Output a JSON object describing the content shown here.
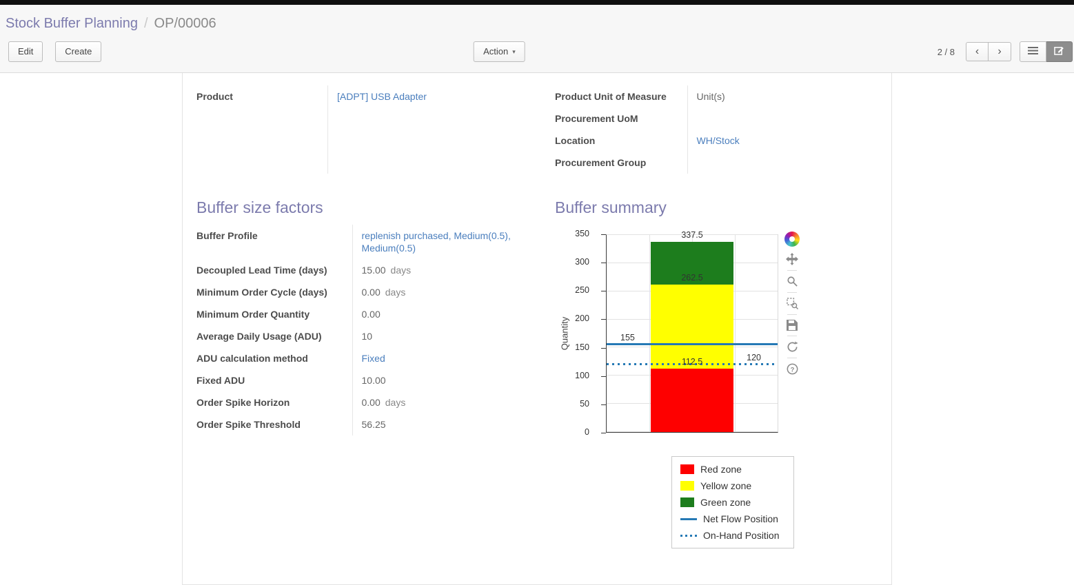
{
  "colors": {
    "accent": "#7c7bad",
    "link": "#4a7ebd",
    "red_zone": "#fe0000",
    "yellow_zone": "#ffff00",
    "green_zone": "#1d7d1d",
    "flow_blue": "#2579b5"
  },
  "breadcrumb": {
    "parent": "Stock Buffer Planning",
    "separator": "/",
    "current": "OP/00006"
  },
  "control_panel": {
    "edit_label": "Edit",
    "create_label": "Create",
    "action_label": "Action",
    "pager_value": "2 / 8",
    "pager_prev": "‹",
    "pager_next": "›"
  },
  "form": {
    "left_fields": [
      {
        "label": "Product",
        "value": "[ADPT] USB Adapter"
      }
    ],
    "right_fields": [
      {
        "label": "Product Unit of Measure",
        "value": "Unit(s)"
      },
      {
        "label": "Procurement UoM",
        "value": ""
      },
      {
        "label": "Location",
        "value": "WH/Stock"
      },
      {
        "label": "Procurement Group",
        "value": ""
      }
    ]
  },
  "buffer_factors": {
    "title": "Buffer size factors",
    "fields": [
      {
        "label": "Buffer Profile",
        "value": "replenish purchased, Medium(0.5), Medium(0.5)",
        "suffix": ""
      },
      {
        "label": "Decoupled Lead Time (days)",
        "value": "15.00",
        "suffix": "days"
      },
      {
        "label": "Minimum Order Cycle (days)",
        "value": "0.00",
        "suffix": "days"
      },
      {
        "label": "Minimum Order Quantity",
        "value": "0.00",
        "suffix": ""
      },
      {
        "label": "Average Daily Usage (ADU)",
        "value": "10",
        "suffix": ""
      },
      {
        "label": "ADU calculation method",
        "value": "Fixed",
        "suffix": ""
      },
      {
        "label": "Fixed ADU",
        "value": "10.00",
        "suffix": ""
      },
      {
        "label": "Order Spike Horizon",
        "value": "0.00",
        "suffix": "days"
      },
      {
        "label": "Order Spike Threshold",
        "value": "56.25",
        "suffix": ""
      }
    ]
  },
  "buffer_summary": {
    "title": "Buffer summary",
    "chart_data": {
      "type": "bar",
      "title": "",
      "xlabel": "",
      "ylabel": "Quantity",
      "ylim": [
        0,
        350
      ],
      "yticks": [
        0,
        50,
        100,
        150,
        200,
        250,
        300,
        350
      ],
      "grid": true,
      "zones": [
        {
          "name": "Red zone",
          "from": 0,
          "to": 112.5,
          "color": "#fe0000"
        },
        {
          "name": "Yellow zone",
          "from": 112.5,
          "to": 262.5,
          "color": "#ffff00"
        },
        {
          "name": "Green zone",
          "from": 262.5,
          "to": 337.5,
          "color": "#1d7d1d"
        }
      ],
      "lines": [
        {
          "name": "Net Flow Position",
          "value": 155,
          "style": "solid",
          "color": "#2579b5"
        },
        {
          "name": "On-Hand Position",
          "value": 120,
          "style": "dotted",
          "color": "#2579b5"
        }
      ],
      "annotations": [
        {
          "text": "337.5",
          "y": 337.5,
          "anchor": "bar"
        },
        {
          "text": "262.5",
          "y": 262.5,
          "anchor": "bar"
        },
        {
          "text": "155",
          "y": 155,
          "anchor": "left"
        },
        {
          "text": "112.5",
          "y": 112.5,
          "anchor": "bar"
        },
        {
          "text": "120",
          "y": 120,
          "anchor": "right"
        }
      ],
      "legend": [
        {
          "label": "Red zone",
          "type": "box",
          "color": "#fe0000"
        },
        {
          "label": "Yellow zone",
          "type": "box",
          "color": "#ffff00"
        },
        {
          "label": "Green zone",
          "type": "box",
          "color": "#1d7d1d"
        },
        {
          "label": "Net Flow Position",
          "type": "line",
          "color": "#2579b5"
        },
        {
          "label": "On-Hand Position",
          "type": "dots",
          "color": "#2579b5"
        }
      ],
      "legend_position": "bottom-right"
    }
  }
}
